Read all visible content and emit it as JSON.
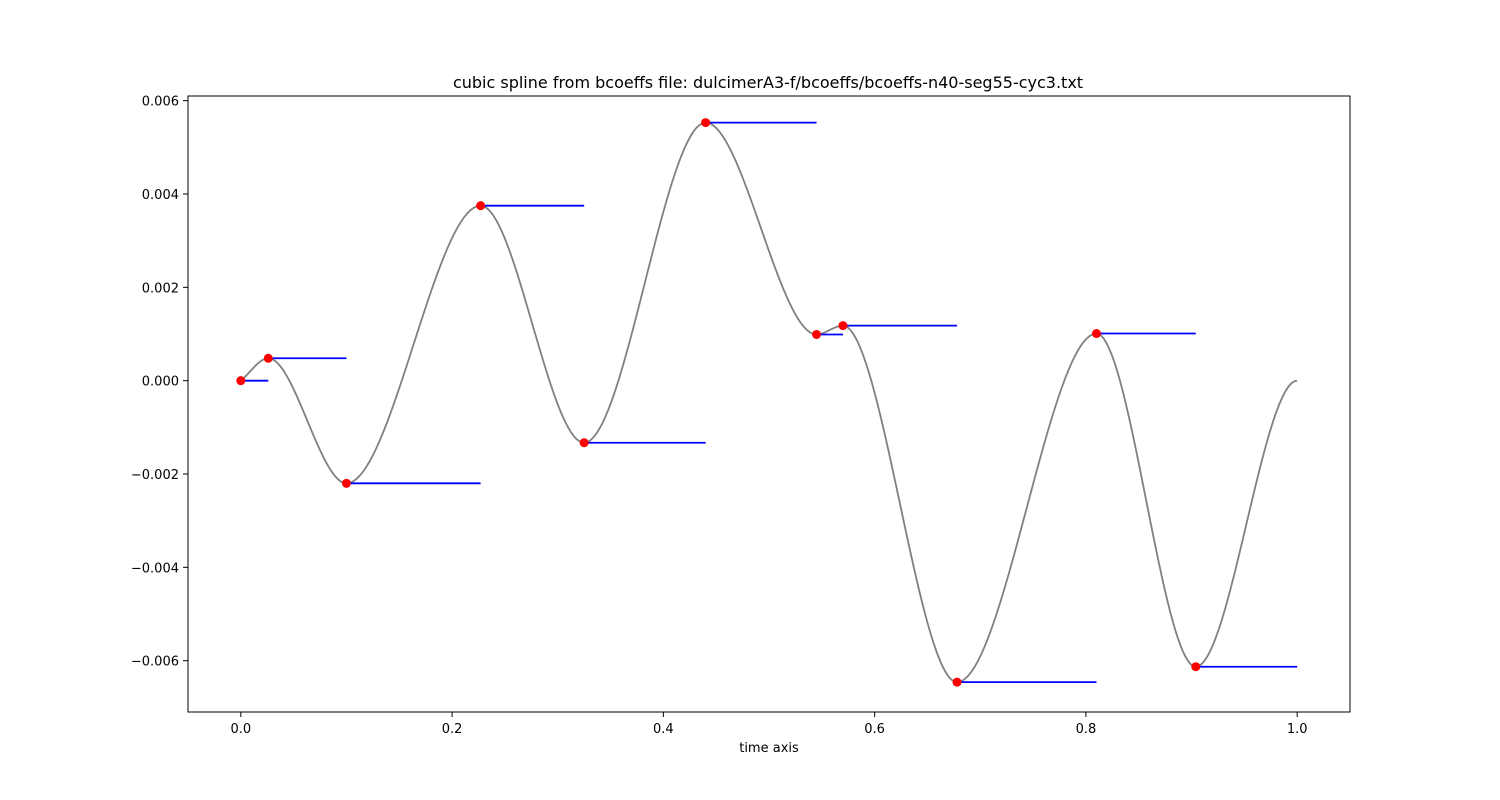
{
  "chart_data": {
    "type": "line",
    "title": "cubic spline from bcoeffs file: dulcimerA3-f/bcoeffs/bcoeffs-n40-seg55-cyc3.txt",
    "xlabel": "time axis",
    "ylabel": "",
    "xlim": [
      -0.05,
      1.05
    ],
    "ylim": [
      -0.0071,
      0.0061
    ],
    "xticks": [
      0.0,
      0.2,
      0.4,
      0.6,
      0.8,
      1.0
    ],
    "xtick_labels": [
      "0.0",
      "0.2",
      "0.4",
      "0.6",
      "0.8",
      "1.0"
    ],
    "yticks": [
      0.006,
      0.004,
      0.002,
      0.0,
      -0.002,
      -0.004,
      -0.006
    ],
    "ytick_labels": [
      "0.006",
      "0.004",
      "0.002",
      "0.000",
      "−0.002",
      "−0.004",
      "−0.006"
    ],
    "grid": false,
    "knots": [
      {
        "x": 0.0,
        "y": 0.0,
        "seg_end": 0.026
      },
      {
        "x": 0.026,
        "y": 0.00048,
        "seg_end": 0.1
      },
      {
        "x": 0.1,
        "y": -0.0022,
        "seg_end": 0.227
      },
      {
        "x": 0.227,
        "y": 0.00375,
        "seg_end": 0.325
      },
      {
        "x": 0.325,
        "y": -0.00133,
        "seg_end": 0.44
      },
      {
        "x": 0.44,
        "y": 0.00553,
        "seg_end": 0.545
      },
      {
        "x": 0.545,
        "y": 0.00099,
        "seg_end": 0.57
      },
      {
        "x": 0.57,
        "y": 0.00118,
        "seg_end": 0.678
      },
      {
        "x": 0.678,
        "y": -0.00646,
        "seg_end": 0.81
      },
      {
        "x": 0.81,
        "y": 0.00101,
        "seg_end": 0.904
      },
      {
        "x": 0.904,
        "y": -0.00613,
        "seg_end": 1.0
      }
    ],
    "end_point": {
      "x": 1.0,
      "y": 0.0
    },
    "colors": {
      "curve": "#808080",
      "knot": "#ff0000",
      "segment": "#0000ff"
    }
  }
}
